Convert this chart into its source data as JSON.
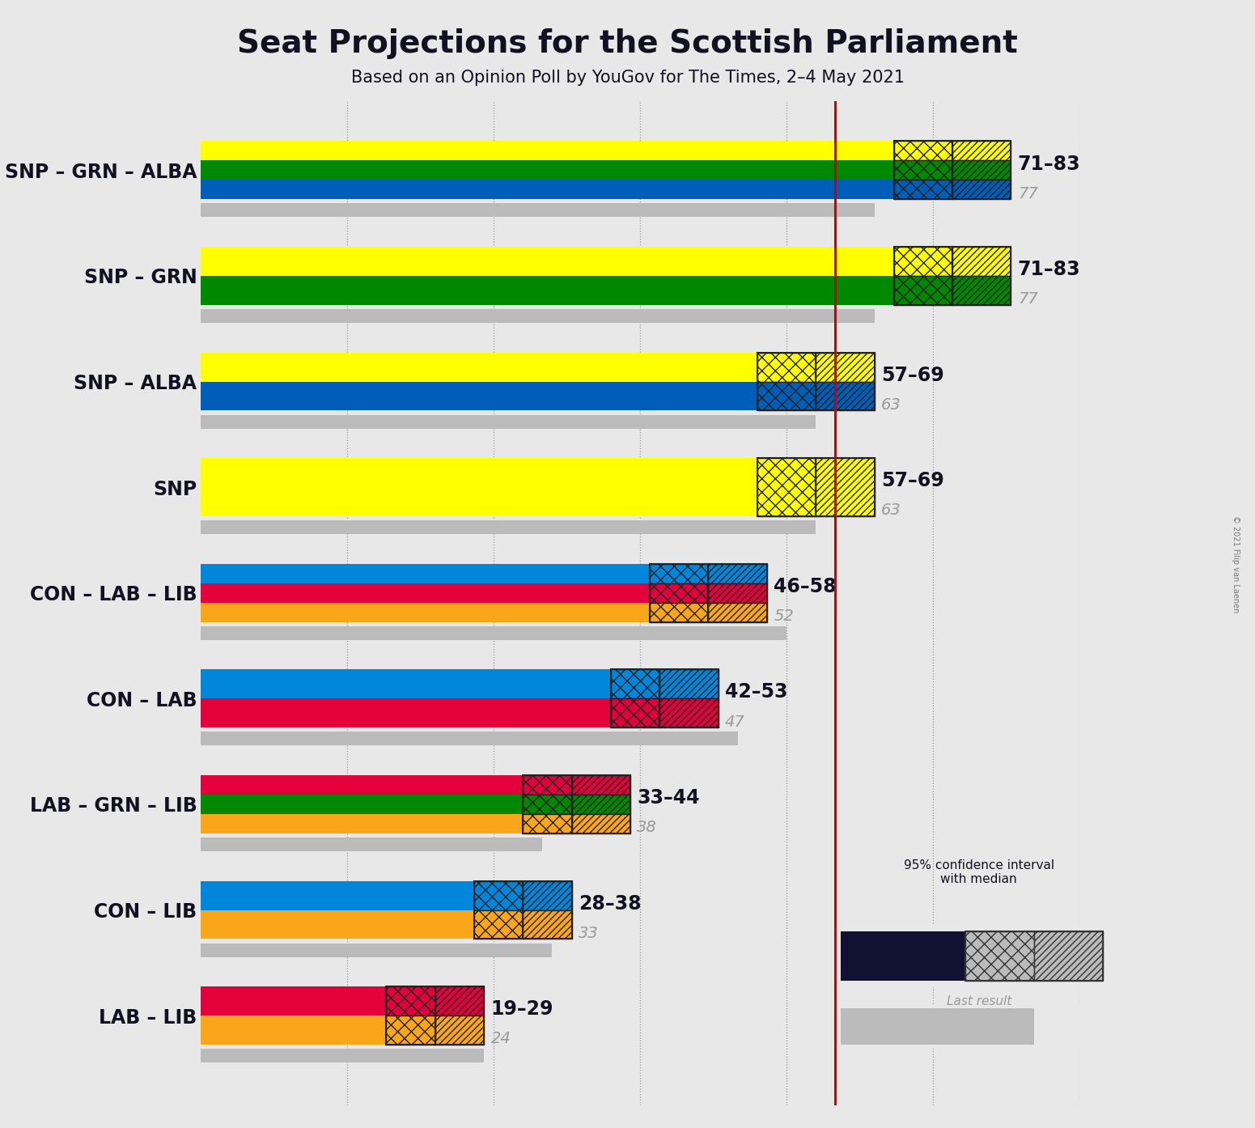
{
  "title": "Seat Projections for the Scottish Parliament",
  "subtitle": "Based on an Opinion Poll by YouGov for The Times, 2–4 May 2021",
  "copyright": "© 2021 Filip van Laenen",
  "background_color": "#e8e8e8",
  "majority_line": 65,
  "x_max": 90,
  "x_ticks": [
    0,
    15,
    30,
    45,
    60,
    75,
    90
  ],
  "coalitions": [
    {
      "label": "SNP – GRN – ALBA",
      "underline": false,
      "ci_low": 71,
      "ci_high": 83,
      "median": 77,
      "last_result": 69,
      "parties": [
        "SNP",
        "GRN",
        "ALBA"
      ],
      "colors": [
        "#FFFF00",
        "#008800",
        "#005EB8"
      ]
    },
    {
      "label": "SNP – GRN",
      "underline": false,
      "ci_low": 71,
      "ci_high": 83,
      "median": 77,
      "last_result": 69,
      "parties": [
        "SNP",
        "GRN"
      ],
      "colors": [
        "#FFFF00",
        "#008800"
      ]
    },
    {
      "label": "SNP – ALBA",
      "underline": false,
      "ci_low": 57,
      "ci_high": 69,
      "median": 63,
      "last_result": 63,
      "parties": [
        "SNP",
        "ALBA"
      ],
      "colors": [
        "#FFFF00",
        "#005EB8"
      ]
    },
    {
      "label": "SNP",
      "underline": true,
      "ci_low": 57,
      "ci_high": 69,
      "median": 63,
      "last_result": 63,
      "parties": [
        "SNP"
      ],
      "colors": [
        "#FFFF00"
      ]
    },
    {
      "label": "CON – LAB – LIB",
      "underline": false,
      "ci_low": 46,
      "ci_high": 58,
      "median": 52,
      "last_result": 60,
      "parties": [
        "CON",
        "LAB",
        "LIB"
      ],
      "colors": [
        "#0087DC",
        "#E4003B",
        "#FAA61A"
      ]
    },
    {
      "label": "CON – LAB",
      "underline": false,
      "ci_low": 42,
      "ci_high": 53,
      "median": 47,
      "last_result": 55,
      "parties": [
        "CON",
        "LAB"
      ],
      "colors": [
        "#0087DC",
        "#E4003B"
      ]
    },
    {
      "label": "LAB – GRN – LIB",
      "underline": false,
      "ci_low": 33,
      "ci_high": 44,
      "median": 38,
      "last_result": 35,
      "parties": [
        "LAB",
        "GRN",
        "LIB"
      ],
      "colors": [
        "#E4003B",
        "#008800",
        "#FAA61A"
      ]
    },
    {
      "label": "CON – LIB",
      "underline": false,
      "ci_low": 28,
      "ci_high": 38,
      "median": 33,
      "last_result": 36,
      "parties": [
        "CON",
        "LIB"
      ],
      "colors": [
        "#0087DC",
        "#FAA61A"
      ]
    },
    {
      "label": "LAB – LIB",
      "underline": false,
      "ci_low": 19,
      "ci_high": 29,
      "median": 24,
      "last_result": 29,
      "parties": [
        "LAB",
        "LIB"
      ],
      "colors": [
        "#E4003B",
        "#FAA61A"
      ]
    }
  ],
  "majority_line_color": "#CC0000",
  "label_fontsize": 17,
  "value_fontsize": 17,
  "median_fontsize": 14,
  "title_fontsize": 28,
  "subtitle_fontsize": 15
}
